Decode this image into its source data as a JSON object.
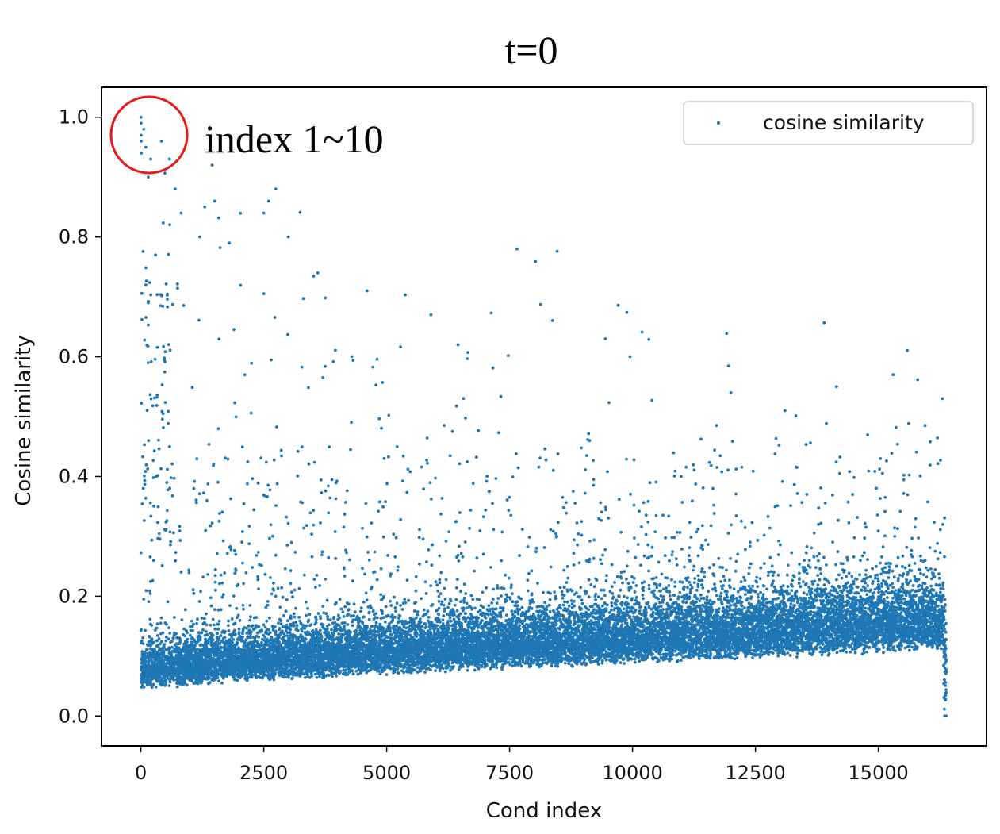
{
  "chart_data": {
    "type": "scatter",
    "title": "t=0",
    "xlabel": "Cond index",
    "ylabel": "Cosine similarity",
    "xlim": [
      -800,
      17200
    ],
    "ylim": [
      -0.05,
      1.05
    ],
    "x_ticks": [
      0,
      2500,
      5000,
      7500,
      10000,
      12500,
      15000
    ],
    "y_ticks": [
      0.0,
      0.2,
      0.4,
      0.6,
      0.8,
      1.0
    ],
    "y_tick_labels": [
      "0.0",
      "0.2",
      "0.4",
      "0.6",
      "0.8",
      "1.0"
    ],
    "legend": {
      "position": "top-right",
      "entries": [
        "cosine similarity"
      ]
    },
    "annotation": {
      "text": "index 1~10",
      "circle_center": [
        60,
        0.97
      ]
    },
    "series": [
      {
        "name": "cosine similarity",
        "color": "#1f77b4",
        "n_points": 16384,
        "notable_points": [
          [
            1,
            1.0
          ],
          [
            3,
            0.99
          ],
          [
            5,
            0.97
          ],
          [
            7,
            0.96
          ],
          [
            9,
            0.94
          ],
          [
            60,
            0.98
          ],
          [
            100,
            0.95
          ],
          [
            150,
            0.9
          ],
          [
            200,
            0.93
          ],
          [
            420,
            0.96
          ],
          [
            580,
            0.93
          ],
          [
            700,
            0.88
          ],
          [
            820,
            0.84
          ],
          [
            1300,
            0.85
          ],
          [
            1450,
            0.92
          ],
          [
            1500,
            0.86
          ],
          [
            2500,
            0.84
          ],
          [
            2600,
            0.86
          ],
          [
            3000,
            0.8
          ],
          [
            1200,
            0.8
          ],
          [
            1800,
            0.79
          ],
          [
            7650,
            0.78
          ],
          [
            3600,
            0.74
          ],
          [
            4600,
            0.71
          ],
          [
            5900,
            0.67
          ],
          [
            9450,
            0.63
          ],
          [
            6450,
            0.62
          ],
          [
            9950,
            0.6
          ],
          [
            15300,
            0.57
          ],
          [
            14150,
            0.55
          ],
          [
            16300,
            0.53
          ],
          [
            13100,
            0.51
          ],
          [
            12000,
            0.54
          ],
          [
            100,
            0.72
          ],
          [
            300,
            0.77
          ],
          [
            150,
            0.69
          ],
          [
            50,
            0.38
          ],
          [
            16350,
            0.0
          ],
          [
            16380,
            0.0
          ]
        ]
      }
    ]
  }
}
